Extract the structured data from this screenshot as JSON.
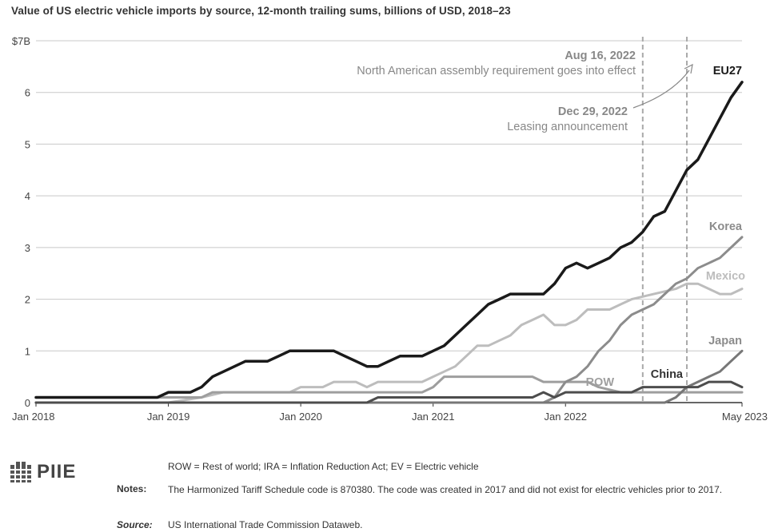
{
  "chart_data": {
    "type": "line",
    "title": "Value of US electric vehicle imports by source, 12-month trailing sums, billions of USD, 2018–23",
    "ylim": [
      0,
      7
    ],
    "y_ticks": [
      {
        "value": 0,
        "label": "0"
      },
      {
        "value": 1,
        "label": "1"
      },
      {
        "value": 2,
        "label": "2"
      },
      {
        "value": 3,
        "label": "3"
      },
      {
        "value": 4,
        "label": "4"
      },
      {
        "value": 5,
        "label": "5"
      },
      {
        "value": 6,
        "label": "6"
      },
      {
        "value": 7,
        "label": "$7B"
      }
    ],
    "x_range": [
      "2018-01",
      "2023-05"
    ],
    "x_ticks": [
      {
        "value": "2018-01",
        "label": "Jan 2018"
      },
      {
        "value": "2019-01",
        "label": "Jan 2019"
      },
      {
        "value": "2020-01",
        "label": "Jan 2020"
      },
      {
        "value": "2021-01",
        "label": "Jan 2021"
      },
      {
        "value": "2022-01",
        "label": "Jan 2022"
      },
      {
        "value": "2023-05",
        "label": "May 2023"
      }
    ],
    "grid": true,
    "legend": "direct labels at line ends",
    "series": [
      {
        "name": "EU27",
        "color": "#1a1a1a",
        "points": [
          [
            "2018-01",
            0.1
          ],
          [
            "2018-12",
            0.1
          ],
          [
            "2019-01",
            0.2
          ],
          [
            "2019-03",
            0.2
          ],
          [
            "2019-04",
            0.3
          ],
          [
            "2019-05",
            0.5
          ],
          [
            "2019-06",
            0.6
          ],
          [
            "2019-07",
            0.7
          ],
          [
            "2019-08",
            0.8
          ],
          [
            "2019-10",
            0.8
          ],
          [
            "2019-11",
            0.9
          ],
          [
            "2019-12",
            1.0
          ],
          [
            "2020-04",
            1.0
          ],
          [
            "2020-05",
            0.9
          ],
          [
            "2020-06",
            0.8
          ],
          [
            "2020-07",
            0.7
          ],
          [
            "2020-08",
            0.7
          ],
          [
            "2020-09",
            0.8
          ],
          [
            "2020-10",
            0.9
          ],
          [
            "2020-12",
            0.9
          ],
          [
            "2021-01",
            1.0
          ],
          [
            "2021-02",
            1.1
          ],
          [
            "2021-03",
            1.3
          ],
          [
            "2021-04",
            1.5
          ],
          [
            "2021-05",
            1.7
          ],
          [
            "2021-06",
            1.9
          ],
          [
            "2021-07",
            2.0
          ],
          [
            "2021-08",
            2.1
          ],
          [
            "2021-11",
            2.1
          ],
          [
            "2021-12",
            2.3
          ],
          [
            "2022-01",
            2.6
          ],
          [
            "2022-02",
            2.7
          ],
          [
            "2022-03",
            2.6
          ],
          [
            "2022-04",
            2.7
          ],
          [
            "2022-05",
            2.8
          ],
          [
            "2022-06",
            3.0
          ],
          [
            "2022-07",
            3.1
          ],
          [
            "2022-08",
            3.3
          ],
          [
            "2022-09",
            3.6
          ],
          [
            "2022-10",
            3.7
          ],
          [
            "2022-11",
            4.1
          ],
          [
            "2022-12",
            4.5
          ],
          [
            "2023-01",
            4.7
          ],
          [
            "2023-02",
            5.1
          ],
          [
            "2023-03",
            5.5
          ],
          [
            "2023-04",
            5.9
          ],
          [
            "2023-05",
            6.2
          ]
        ]
      },
      {
        "name": "Korea",
        "color": "#8c8c8c",
        "points": [
          [
            "2018-01",
            0.0
          ],
          [
            "2021-11",
            0.0
          ],
          [
            "2021-12",
            0.1
          ],
          [
            "2022-01",
            0.4
          ],
          [
            "2022-02",
            0.5
          ],
          [
            "2022-03",
            0.7
          ],
          [
            "2022-04",
            1.0
          ],
          [
            "2022-05",
            1.2
          ],
          [
            "2022-06",
            1.5
          ],
          [
            "2022-07",
            1.7
          ],
          [
            "2022-08",
            1.8
          ],
          [
            "2022-09",
            1.9
          ],
          [
            "2022-10",
            2.1
          ],
          [
            "2022-11",
            2.3
          ],
          [
            "2022-12",
            2.4
          ],
          [
            "2023-01",
            2.6
          ],
          [
            "2023-02",
            2.7
          ],
          [
            "2023-03",
            2.8
          ],
          [
            "2023-04",
            3.0
          ],
          [
            "2023-05",
            3.2
          ]
        ]
      },
      {
        "name": "Mexico",
        "color": "#bdbdbd",
        "points": [
          [
            "2018-01",
            0.0
          ],
          [
            "2019-01",
            0.0
          ],
          [
            "2019-04",
            0.1
          ],
          [
            "2019-06",
            0.2
          ],
          [
            "2019-12",
            0.2
          ],
          [
            "2020-01",
            0.3
          ],
          [
            "2020-03",
            0.3
          ],
          [
            "2020-04",
            0.4
          ],
          [
            "2020-06",
            0.4
          ],
          [
            "2020-07",
            0.3
          ],
          [
            "2020-08",
            0.4
          ],
          [
            "2020-12",
            0.4
          ],
          [
            "2021-01",
            0.5
          ],
          [
            "2021-02",
            0.6
          ],
          [
            "2021-03",
            0.7
          ],
          [
            "2021-04",
            0.9
          ],
          [
            "2021-05",
            1.1
          ],
          [
            "2021-06",
            1.1
          ],
          [
            "2021-07",
            1.2
          ],
          [
            "2021-08",
            1.3
          ],
          [
            "2021-09",
            1.5
          ],
          [
            "2021-10",
            1.6
          ],
          [
            "2021-11",
            1.7
          ],
          [
            "2021-12",
            1.5
          ],
          [
            "2022-01",
            1.5
          ],
          [
            "2022-02",
            1.6
          ],
          [
            "2022-03",
            1.8
          ],
          [
            "2022-05",
            1.8
          ],
          [
            "2022-06",
            1.9
          ],
          [
            "2022-07",
            2.0
          ],
          [
            "2022-09",
            2.1
          ],
          [
            "2022-11",
            2.2
          ],
          [
            "2022-12",
            2.3
          ],
          [
            "2023-01",
            2.3
          ],
          [
            "2023-02",
            2.2
          ],
          [
            "2023-03",
            2.1
          ],
          [
            "2023-04",
            2.1
          ],
          [
            "2023-05",
            2.2
          ]
        ]
      },
      {
        "name": "Japan",
        "color": "#777777",
        "points": [
          [
            "2018-01",
            0.0
          ],
          [
            "2022-10",
            0.0
          ],
          [
            "2022-11",
            0.1
          ],
          [
            "2022-12",
            0.3
          ],
          [
            "2023-01",
            0.4
          ],
          [
            "2023-02",
            0.5
          ],
          [
            "2023-03",
            0.6
          ],
          [
            "2023-04",
            0.8
          ],
          [
            "2023-05",
            1.0
          ]
        ]
      },
      {
        "name": "ROW",
        "color": "#9e9e9e",
        "points": [
          [
            "2018-01",
            0.1
          ],
          [
            "2019-04",
            0.1
          ],
          [
            "2019-05",
            0.2
          ],
          [
            "2020-12",
            0.2
          ],
          [
            "2021-01",
            0.3
          ],
          [
            "2021-02",
            0.5
          ],
          [
            "2021-10",
            0.5
          ],
          [
            "2021-11",
            0.4
          ],
          [
            "2022-03",
            0.4
          ],
          [
            "2022-04",
            0.3
          ],
          [
            "2022-06",
            0.2
          ],
          [
            "2023-01",
            0.2
          ],
          [
            "2023-02",
            0.2
          ],
          [
            "2023-05",
            0.2
          ]
        ]
      },
      {
        "name": "China",
        "color": "#4d4d4d",
        "points": [
          [
            "2018-01",
            0.0
          ],
          [
            "2020-07",
            0.0
          ],
          [
            "2020-08",
            0.1
          ],
          [
            "2021-10",
            0.1
          ],
          [
            "2021-11",
            0.2
          ],
          [
            "2021-12",
            0.1
          ],
          [
            "2022-01",
            0.2
          ],
          [
            "2022-07",
            0.2
          ],
          [
            "2022-08",
            0.3
          ],
          [
            "2023-01",
            0.3
          ],
          [
            "2023-02",
            0.4
          ],
          [
            "2023-04",
            0.4
          ],
          [
            "2023-05",
            0.3
          ]
        ]
      }
    ],
    "annotations": [
      {
        "date_x": "2022-08",
        "date": "Aug 16, 2022",
        "text": "North American assembly requirement goes into effect"
      },
      {
        "date_x": "2022-12",
        "date": "Dec 29, 2022",
        "text": "Leasing announcement"
      }
    ]
  },
  "footer": {
    "logo_text": "PIIE",
    "abbreviations": "ROW = Rest of world; IRA = Inflation Reduction Act; EV = Electric vehicle",
    "notes_label": "Notes:",
    "notes": "The Harmonized Tariff Schedule code is 870380. The code was created in 2017 and did not exist for electric vehicles prior to 2017.",
    "source_label": "Source:",
    "source": "US International Trade Commission Dataweb."
  }
}
